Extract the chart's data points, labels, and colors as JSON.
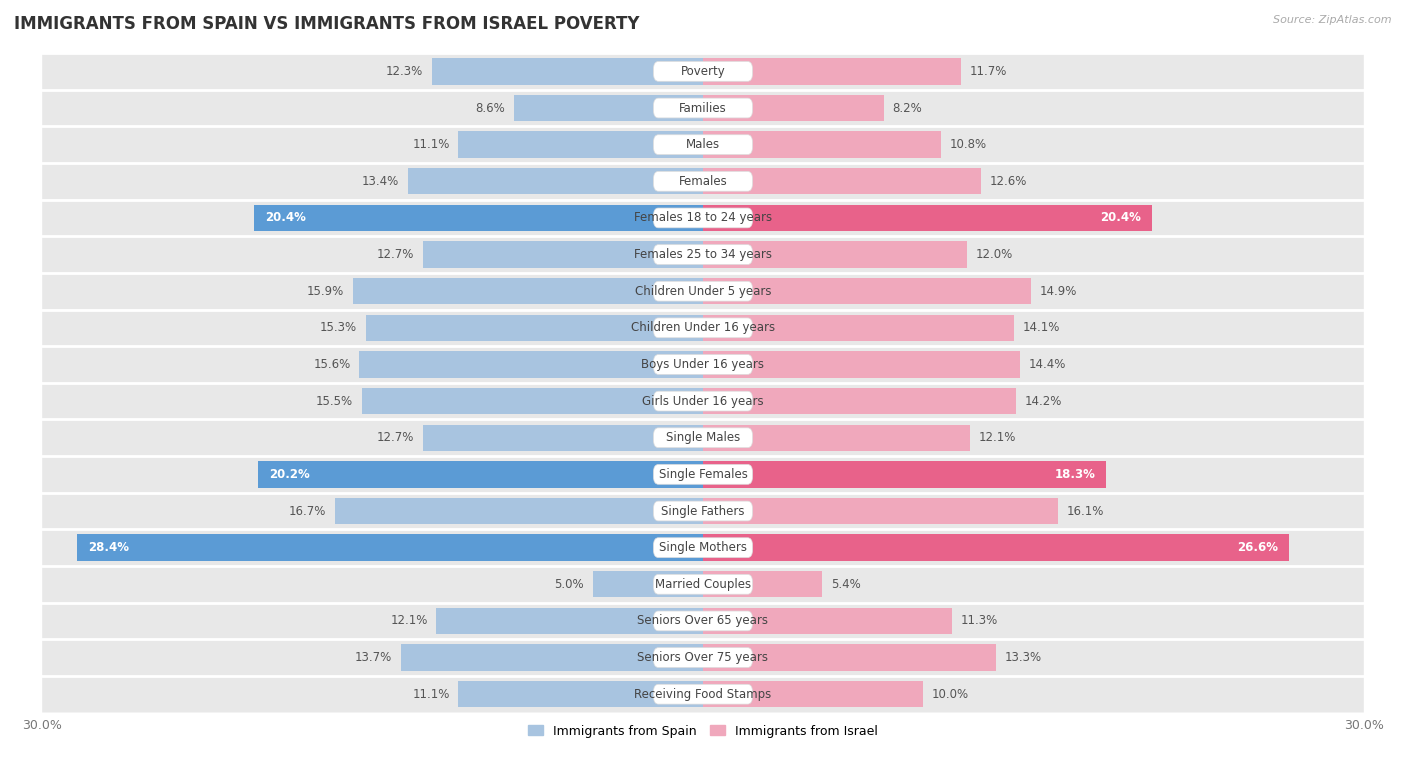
{
  "title": "IMMIGRANTS FROM SPAIN VS IMMIGRANTS FROM ISRAEL POVERTY",
  "source": "Source: ZipAtlas.com",
  "categories": [
    "Poverty",
    "Families",
    "Males",
    "Females",
    "Females 18 to 24 years",
    "Females 25 to 34 years",
    "Children Under 5 years",
    "Children Under 16 years",
    "Boys Under 16 years",
    "Girls Under 16 years",
    "Single Males",
    "Single Females",
    "Single Fathers",
    "Single Mothers",
    "Married Couples",
    "Seniors Over 65 years",
    "Seniors Over 75 years",
    "Receiving Food Stamps"
  ],
  "spain_values": [
    12.3,
    8.6,
    11.1,
    13.4,
    20.4,
    12.7,
    15.9,
    15.3,
    15.6,
    15.5,
    12.7,
    20.2,
    16.7,
    28.4,
    5.0,
    12.1,
    13.7,
    11.1
  ],
  "israel_values": [
    11.7,
    8.2,
    10.8,
    12.6,
    20.4,
    12.0,
    14.9,
    14.1,
    14.4,
    14.2,
    12.1,
    18.3,
    16.1,
    26.6,
    5.4,
    11.3,
    13.3,
    10.0
  ],
  "spain_color": "#a8c4e0",
  "israel_color": "#f0a8bc",
  "spain_label": "Immigrants from Spain",
  "israel_label": "Immigrants from Israel",
  "axis_limit": 30.0,
  "bar_height": 0.72,
  "background_color": "#ffffff",
  "row_color": "#e8e8e8",
  "row_sep_color": "#ffffff",
  "highlight_color_spain": "#5b9bd5",
  "highlight_color_israel": "#e8628a",
  "highlight_rows": [
    4,
    11,
    13
  ],
  "title_fontsize": 12,
  "label_fontsize": 8.5,
  "value_fontsize": 8.5
}
